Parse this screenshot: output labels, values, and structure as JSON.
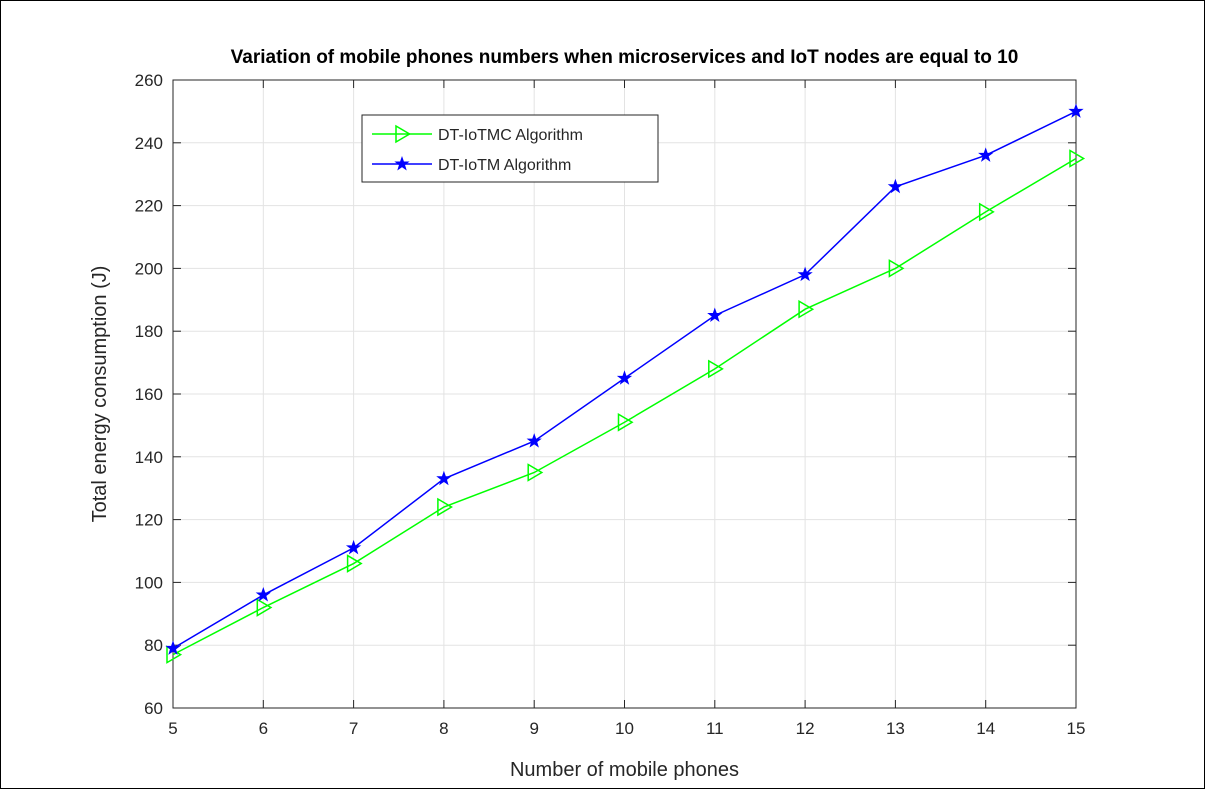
{
  "chart_data": {
    "type": "line",
    "title": "Variation of mobile phones numbers when microservices and IoT nodes are equal to 10",
    "xlabel": "Number of mobile phones",
    "ylabel": "Total energy consumption (J)",
    "x": [
      5,
      6,
      7,
      8,
      9,
      10,
      11,
      12,
      13,
      14,
      15
    ],
    "xlim": [
      5,
      15
    ],
    "ylim": [
      60,
      260
    ],
    "xticks": [
      "5",
      "6",
      "7",
      "8",
      "9",
      "10",
      "11",
      "12",
      "13",
      "14",
      "15"
    ],
    "yticks": [
      "60",
      "80",
      "100",
      "120",
      "140",
      "160",
      "180",
      "200",
      "220",
      "240",
      "260"
    ],
    "grid": true,
    "legend_position": "top-left",
    "series": [
      {
        "name": "DT-IoTMC Algorithm",
        "color": "#00ff00",
        "marker": "triangle-right",
        "values": [
          77,
          92,
          106,
          124,
          135,
          151,
          168,
          187,
          200,
          218,
          235
        ]
      },
      {
        "name": "DT-IoTM Algorithm",
        "color": "#0000ff",
        "marker": "star",
        "values": [
          79,
          96,
          111,
          133,
          145,
          165,
          185,
          198,
          226,
          236,
          250
        ]
      }
    ]
  }
}
